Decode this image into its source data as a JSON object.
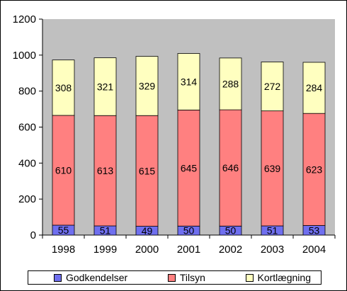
{
  "chart_data": {
    "type": "bar",
    "stacked": true,
    "categories": [
      "1998",
      "1999",
      "2000",
      "2001",
      "2002",
      "2003",
      "2004"
    ],
    "series": [
      {
        "name": "Godkendelser",
        "color": "#6f6fef",
        "values": [
          55,
          51,
          49,
          50,
          50,
          51,
          53
        ]
      },
      {
        "name": "Tilsyn",
        "color": "#ff8080",
        "values": [
          610,
          613,
          615,
          645,
          646,
          639,
          623
        ]
      },
      {
        "name": "Kortlægning",
        "color": "#ffffc0",
        "values": [
          308,
          321,
          329,
          314,
          288,
          272,
          284
        ]
      }
    ],
    "ylim": [
      0,
      1200
    ],
    "yticks": [
      0,
      200,
      400,
      600,
      800,
      1000,
      1200
    ],
    "grid": false,
    "legend": "bottom",
    "plot_background": "#c0c0c0"
  }
}
